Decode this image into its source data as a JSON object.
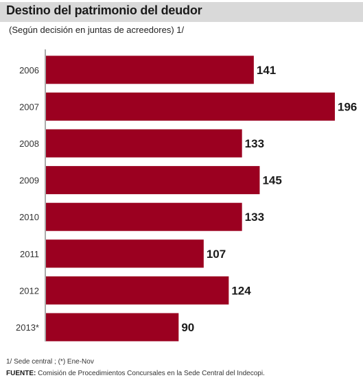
{
  "header": {
    "title": "Destino del patrimonio del deudor",
    "subtitle": "(Según decisión en juntas de acreedores)  1/"
  },
  "footer": {
    "footnote": "1/ Sede central ;     (*) Ene-Nov",
    "source_label": "FUENTE:",
    "source_text": " Comisión de Procedimientos Concursales en la Sede Central del Indecopi."
  },
  "colors": {
    "bar": "#9b0020",
    "title_bar": "#d9d9d9"
  },
  "chart_data": {
    "type": "bar",
    "orientation": "horizontal",
    "title": "Destino del patrimonio del deudor",
    "subtitle": "(Según decisión en juntas de acreedores)  1/",
    "xlabel": "",
    "ylabel": "",
    "categories": [
      "2006",
      "2007",
      "2008",
      "2009",
      "2010",
      "2011",
      "2012",
      "2013*"
    ],
    "values": [
      141,
      196,
      133,
      145,
      133,
      107,
      124,
      90
    ],
    "xlim": [
      0,
      196
    ],
    "grid": false,
    "legend": "none",
    "data_labels": true
  }
}
